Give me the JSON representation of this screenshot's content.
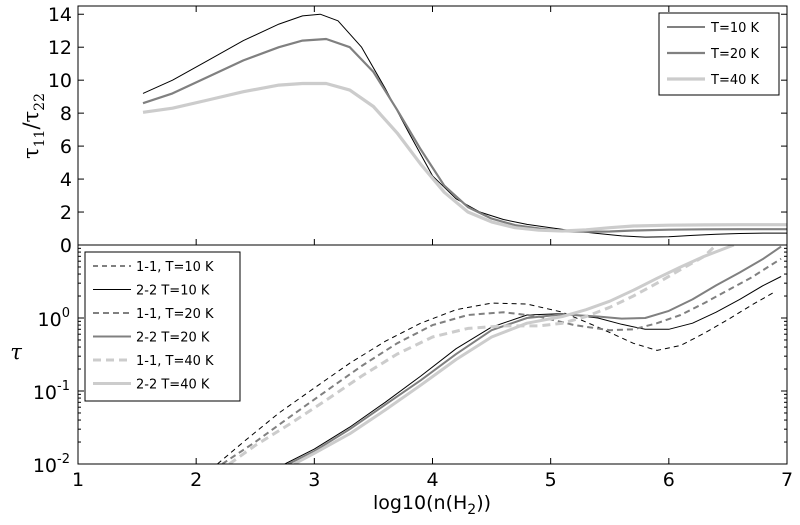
{
  "chart_data": [
    {
      "type": "line",
      "panel": "top",
      "xlabel": "",
      "ylabel": "τ11/τ22",
      "ylabel_main": "τ",
      "ylabel_sub1": "11",
      "ylabel_div": "/τ",
      "ylabel_sub2": "22",
      "xlim": [
        1,
        7
      ],
      "ylim": [
        0,
        14.5
      ],
      "yticks": [
        0,
        2,
        4,
        6,
        8,
        10,
        12,
        14
      ],
      "yticklabels": [
        "0",
        "2",
        "4",
        "6",
        "8",
        "10",
        "12",
        "14"
      ],
      "legend_position": "top-right",
      "series": [
        {
          "name": "T=10 K",
          "color": "#000000",
          "width": 1.0,
          "dash": "",
          "x": [
            1.55,
            1.8,
            2.1,
            2.4,
            2.7,
            2.9,
            3.05,
            3.2,
            3.4,
            3.6,
            3.8,
            4.0,
            4.2,
            4.4,
            4.6,
            4.8,
            5.0,
            5.2,
            5.4,
            5.6,
            5.8,
            6.0,
            6.2,
            6.4,
            6.6,
            6.8,
            7.0
          ],
          "y": [
            9.2,
            10.0,
            11.2,
            12.4,
            13.4,
            13.9,
            14.0,
            13.6,
            12.0,
            9.5,
            6.8,
            4.2,
            2.8,
            2.0,
            1.55,
            1.25,
            1.05,
            0.85,
            0.7,
            0.55,
            0.48,
            0.5,
            0.58,
            0.65,
            0.7,
            0.72,
            0.72
          ]
        },
        {
          "name": "T=20 K",
          "color": "#808080",
          "width": 2.2,
          "dash": "",
          "x": [
            1.55,
            1.8,
            2.1,
            2.4,
            2.7,
            2.9,
            3.1,
            3.3,
            3.5,
            3.7,
            3.9,
            4.1,
            4.3,
            4.5,
            4.7,
            4.9,
            5.1,
            5.3,
            5.5,
            5.7,
            6.0,
            6.3,
            6.6,
            7.0
          ],
          "y": [
            8.6,
            9.2,
            10.2,
            11.2,
            12.0,
            12.4,
            12.5,
            12.0,
            10.5,
            8.2,
            5.8,
            3.6,
            2.3,
            1.6,
            1.2,
            1.0,
            0.85,
            0.8,
            0.82,
            0.88,
            0.93,
            0.95,
            0.96,
            0.96
          ]
        },
        {
          "name": "T=40 K",
          "color": "#cccccc",
          "width": 3.2,
          "dash": "",
          "x": [
            1.55,
            1.8,
            2.1,
            2.4,
            2.7,
            2.9,
            3.1,
            3.3,
            3.5,
            3.7,
            3.9,
            4.1,
            4.3,
            4.5,
            4.7,
            4.9,
            5.1,
            5.3,
            5.5,
            5.7,
            6.0,
            6.3,
            6.6,
            7.0
          ],
          "y": [
            8.05,
            8.3,
            8.8,
            9.3,
            9.7,
            9.8,
            9.8,
            9.4,
            8.4,
            6.8,
            4.9,
            3.2,
            2.0,
            1.4,
            1.05,
            0.9,
            0.85,
            0.92,
            1.05,
            1.15,
            1.2,
            1.22,
            1.23,
            1.23
          ]
        }
      ]
    },
    {
      "type": "line",
      "panel": "bottom",
      "xlabel": "log10(n(H2))",
      "xlabel_pre": "log10(n(H",
      "xlabel_sub": "2",
      "xlabel_post": "))",
      "ylabel": "τ",
      "yscale": "log",
      "xlim": [
        1,
        7
      ],
      "ylim": [
        0.01,
        10
      ],
      "xticks": [
        1,
        2,
        3,
        4,
        5,
        6,
        7
      ],
      "xticklabels": [
        "1",
        "2",
        "3",
        "4",
        "5",
        "6",
        "7"
      ],
      "yticks": [
        0.01,
        0.1,
        1
      ],
      "yticklabels": [
        {
          "base": "10",
          "exp": "-2"
        },
        {
          "base": "10",
          "exp": "-1"
        },
        {
          "base": "10",
          "exp": "0"
        }
      ],
      "legend_position": "top-left",
      "series": [
        {
          "name": "1-1, T=10 K",
          "color": "#000000",
          "width": 1.0,
          "dash": "5,4",
          "x": [
            2.18,
            2.4,
            2.7,
            3.0,
            3.3,
            3.6,
            3.9,
            4.2,
            4.5,
            4.8,
            5.1,
            5.4,
            5.7,
            5.9,
            6.1,
            6.3,
            6.5,
            6.7,
            6.9
          ],
          "y": [
            0.01,
            0.02,
            0.05,
            0.11,
            0.24,
            0.48,
            0.85,
            1.3,
            1.6,
            1.55,
            1.2,
            0.75,
            0.45,
            0.36,
            0.42,
            0.62,
            0.95,
            1.5,
            2.3
          ]
        },
        {
          "name": "2-2 T=10 K",
          "color": "#000000",
          "width": 1.0,
          "dash": "",
          "x": [
            2.75,
            3.0,
            3.3,
            3.6,
            3.9,
            4.2,
            4.5,
            4.8,
            5.1,
            5.4,
            5.6,
            5.8,
            6.0,
            6.2,
            6.4,
            6.6,
            6.8,
            6.95
          ],
          "y": [
            0.01,
            0.016,
            0.032,
            0.07,
            0.16,
            0.38,
            0.75,
            1.1,
            1.15,
            1.0,
            0.82,
            0.7,
            0.7,
            0.85,
            1.2,
            1.8,
            2.8,
            3.7
          ]
        },
        {
          "name": "1-1, T=20 K",
          "color": "#808080",
          "width": 2.0,
          "dash": "6,4",
          "x": [
            2.22,
            2.5,
            2.8,
            3.1,
            3.4,
            3.7,
            4.0,
            4.3,
            4.6,
            4.9,
            5.2,
            5.5,
            5.7,
            5.9,
            6.1,
            6.3,
            6.5,
            6.7,
            6.95
          ],
          "y": [
            0.01,
            0.02,
            0.045,
            0.1,
            0.22,
            0.45,
            0.8,
            1.1,
            1.2,
            1.05,
            0.8,
            0.68,
            0.7,
            0.85,
            1.1,
            1.6,
            2.4,
            3.6,
            6.5
          ]
        },
        {
          "name": "2-2 T=20 K",
          "color": "#808080",
          "width": 2.0,
          "dash": "",
          "x": [
            2.78,
            3.0,
            3.3,
            3.6,
            3.9,
            4.2,
            4.5,
            4.8,
            5.1,
            5.4,
            5.6,
            5.8,
            6.0,
            6.2,
            6.4,
            6.6,
            6.8,
            6.95
          ],
          "y": [
            0.01,
            0.015,
            0.03,
            0.065,
            0.14,
            0.32,
            0.68,
            1.0,
            1.12,
            1.05,
            0.98,
            1.0,
            1.25,
            1.8,
            2.8,
            4.2,
            6.5,
            9.5
          ]
        },
        {
          "name": "1-1, T=40 K",
          "color": "#cccccc",
          "width": 3.0,
          "dash": "8,5",
          "x": [
            2.28,
            2.5,
            2.8,
            3.1,
            3.4,
            3.7,
            4.0,
            4.3,
            4.6,
            4.9,
            5.1,
            5.3,
            5.5,
            5.7,
            5.9,
            6.1,
            6.3,
            6.4
          ],
          "y": [
            0.01,
            0.018,
            0.036,
            0.075,
            0.16,
            0.32,
            0.55,
            0.72,
            0.78,
            0.78,
            0.85,
            1.05,
            1.4,
            2.0,
            3.0,
            4.6,
            7.0,
            10.0
          ]
        },
        {
          "name": "2-2 T=40 K",
          "color": "#cccccc",
          "width": 3.0,
          "dash": "",
          "x": [
            2.83,
            3.0,
            3.3,
            3.6,
            3.9,
            4.2,
            4.5,
            4.8,
            5.1,
            5.3,
            5.5,
            5.7,
            5.9,
            6.1,
            6.3,
            6.55
          ],
          "y": [
            0.01,
            0.014,
            0.026,
            0.055,
            0.12,
            0.27,
            0.55,
            0.85,
            1.05,
            1.3,
            1.7,
            2.4,
            3.5,
            5.0,
            7.0,
            10.0
          ]
        }
      ]
    }
  ]
}
